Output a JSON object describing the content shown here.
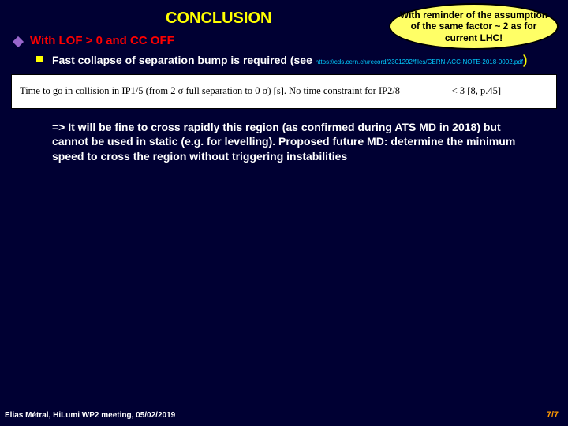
{
  "title": "CONCLUSION",
  "callout": "With reminder of the assumption of the same factor ~ 2 as for current LHC!",
  "sub1": "With LOF > 0 and CC OFF",
  "sub2_main": "Fast collapse of separation bump is required (see ",
  "sub2_link": "https://cds.cern.ch/record/2301292/files/CERN-ACC-NOTE-2018-0002.pdf",
  "sub2_close": ")",
  "imgbox_left": "Time to go in collision in IP1/5 (from 2 σ full separation to 0 σ) [s]. No time constraint for IP2/8",
  "imgbox_right": "< 3 [8, p.45]",
  "conclusion": "=> It will be fine to cross rapidly this region (as confirmed during ATS MD in 2018) but cannot be used in static (e.g. for levelling). Proposed future MD: determine the minimum speed to cross the region without triggering instabilities",
  "footer_left": "Elias Métral, HiLumi WP2 meeting, 05/02/2019",
  "footer_right": "7/7",
  "colors": {
    "bg": "#000033",
    "title": "#ffff00",
    "callout_bg": "#ffff66",
    "bullet1": "#9966cc",
    "bullet2": "#ffff00",
    "sub1_text": "#ff0000",
    "body_text": "#ffffff",
    "link": "#00ccff",
    "page_num": "#ff9900"
  }
}
